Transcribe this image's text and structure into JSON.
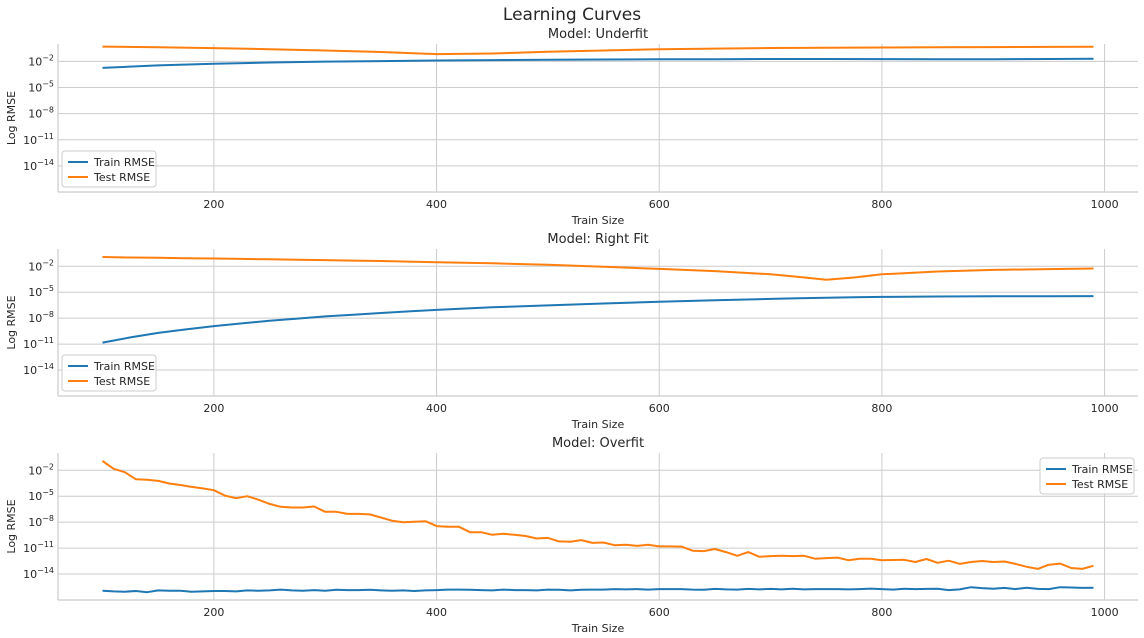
{
  "figure": {
    "title": "Learning Curves"
  },
  "chart_data": [
    {
      "type": "line",
      "title": "Model: Underfit",
      "xlabel": "Train Size",
      "ylabel": "Log RMSE",
      "yscale": "log",
      "xlim": [
        60,
        1030
      ],
      "ylim": [
        1e-17,
        1
      ],
      "xticks": [
        200,
        400,
        600,
        800,
        1000
      ],
      "yticks": [
        0.01,
        1e-05,
        1e-08,
        1e-11,
        1e-14
      ],
      "ytick_labels": [
        {
          "base": "10",
          "exp": "−2"
        },
        {
          "base": "10",
          "exp": "−5"
        },
        {
          "base": "10",
          "exp": "−8"
        },
        {
          "base": "10",
          "exp": "−11"
        },
        {
          "base": "10",
          "exp": "−14"
        }
      ],
      "grid": true,
      "legend": "lower-left",
      "x": [
        100,
        150,
        200,
        250,
        300,
        350,
        400,
        450,
        500,
        550,
        600,
        650,
        700,
        750,
        800,
        850,
        900,
        950,
        990
      ],
      "series": [
        {
          "name": "Train RMSE",
          "color": "#1f77b4",
          "values": [
            0.0018,
            0.0035,
            0.0055,
            0.0075,
            0.0095,
            0.011,
            0.0128,
            0.014,
            0.0155,
            0.0165,
            0.0175,
            0.018,
            0.019,
            0.019,
            0.0185,
            0.018,
            0.018,
            0.019,
            0.02
          ]
        },
        {
          "name": "Test RMSE",
          "color": "#ff7f0e",
          "values": [
            0.5,
            0.43,
            0.34,
            0.25,
            0.18,
            0.12,
            0.07,
            0.08,
            0.13,
            0.18,
            0.25,
            0.3,
            0.35,
            0.38,
            0.4,
            0.42,
            0.44,
            0.46,
            0.48
          ]
        }
      ]
    },
    {
      "type": "line",
      "title": "Model: Right Fit",
      "xlabel": "Train Size",
      "ylabel": "Log RMSE",
      "yscale": "log",
      "xlim": [
        60,
        1030
      ],
      "ylim": [
        1e-17,
        1
      ],
      "xticks": [
        200,
        400,
        600,
        800,
        1000
      ],
      "yticks": [
        0.01,
        1e-05,
        1e-08,
        1e-11,
        1e-14
      ],
      "ytick_labels": [
        {
          "base": "10",
          "exp": "−2"
        },
        {
          "base": "10",
          "exp": "−5"
        },
        {
          "base": "10",
          "exp": "−8"
        },
        {
          "base": "10",
          "exp": "−11"
        },
        {
          "base": "10",
          "exp": "−14"
        }
      ],
      "grid": true,
      "legend": "lower-left",
      "x": [
        100,
        125,
        150,
        175,
        200,
        225,
        250,
        275,
        300,
        325,
        350,
        375,
        400,
        450,
        500,
        550,
        600,
        650,
        700,
        725,
        750,
        775,
        800,
        850,
        900,
        950,
        990
      ],
      "series": [
        {
          "name": "Train RMSE",
          "color": "#1f77b4",
          "values": [
            1.5e-11,
            6e-11,
            2e-10,
            5e-10,
            1.2e-09,
            2.5e-09,
            5e-09,
            9e-09,
            1.6e-08,
            2.5e-08,
            4e-08,
            6e-08,
            9e-08,
            1.8e-07,
            3e-07,
            5e-07,
            8e-07,
            1.2e-06,
            1.7e-06,
            2e-06,
            2.3e-06,
            2.6e-06,
            2.9e-06,
            3.2e-06,
            3.4e-06,
            3.5e-06,
            3.6e-06
          ]
        },
        {
          "name": "Test RMSE",
          "color": "#ff7f0e",
          "values": [
            0.12,
            0.105,
            0.095,
            0.087,
            0.08,
            0.072,
            0.065,
            0.058,
            0.052,
            0.046,
            0.041,
            0.035,
            0.03,
            0.022,
            0.015,
            0.009,
            0.005,
            0.0028,
            0.0012,
            0.0006,
            0.00028,
            0.0005,
            0.0012,
            0.0025,
            0.0038,
            0.0048,
            0.0055
          ]
        }
      ]
    },
    {
      "type": "line",
      "title": "Model: Overfit",
      "xlabel": "Train Size",
      "ylabel": "Log RMSE",
      "yscale": "log",
      "xlim": [
        60,
        1030
      ],
      "ylim": [
        1e-17,
        1
      ],
      "xticks": [
        200,
        400,
        600,
        800,
        1000
      ],
      "yticks": [
        0.01,
        1e-05,
        1e-08,
        1e-11,
        1e-14
      ],
      "ytick_labels": [
        {
          "base": "10",
          "exp": "−2"
        },
        {
          "base": "10",
          "exp": "−5"
        },
        {
          "base": "10",
          "exp": "−8"
        },
        {
          "base": "10",
          "exp": "−11"
        },
        {
          "base": "10",
          "exp": "−14"
        }
      ],
      "grid": true,
      "legend": "upper-right",
      "x": [
        100,
        110,
        120,
        130,
        140,
        150,
        160,
        170,
        180,
        190,
        200,
        210,
        220,
        230,
        240,
        250,
        260,
        270,
        280,
        290,
        300,
        310,
        320,
        330,
        340,
        350,
        360,
        370,
        380,
        390,
        400,
        410,
        420,
        430,
        440,
        450,
        460,
        470,
        480,
        490,
        500,
        510,
        520,
        530,
        540,
        550,
        560,
        570,
        580,
        590,
        600,
        610,
        620,
        630,
        640,
        650,
        660,
        670,
        680,
        690,
        700,
        710,
        720,
        730,
        740,
        750,
        760,
        770,
        780,
        790,
        800,
        810,
        820,
        830,
        840,
        850,
        860,
        870,
        880,
        890,
        900,
        910,
        920,
        930,
        940,
        950,
        960,
        970,
        980,
        990
      ],
      "series": [
        {
          "name": "Train RMSE",
          "color": "#1f77b4",
          "values": [
            1.2e-16,
            1e-16,
            9e-17,
            1.1e-16,
            8e-17,
            1.3e-16,
            1.2e-16,
            1.2e-16,
            9e-17,
            1e-16,
            1.1e-16,
            1.1e-16,
            1e-16,
            1.3e-16,
            1.2e-16,
            1.3e-16,
            1.6e-16,
            1.3e-16,
            1.2e-16,
            1.4e-16,
            1.2e-16,
            1.5e-16,
            1.4e-16,
            1.4e-16,
            1.5e-16,
            1.3e-16,
            1.2e-16,
            1.3e-16,
            1.1e-16,
            1.3e-16,
            1.4e-16,
            1.6e-16,
            1.6e-16,
            1.5e-16,
            1.4e-16,
            1.3e-16,
            1.6e-16,
            1.4e-16,
            1.4e-16,
            1.3e-16,
            1.6e-16,
            1.5e-16,
            1.3e-16,
            1.5e-16,
            1.6e-16,
            1.6e-16,
            1.8e-16,
            1.7e-16,
            1.8e-16,
            1.6e-16,
            1.8e-16,
            1.8e-16,
            1.8e-16,
            1.6e-16,
            1.5e-16,
            1.9e-16,
            1.7e-16,
            1.6e-16,
            1.9e-16,
            1.7e-16,
            1.9e-16,
            1.7e-16,
            2e-16,
            1.7e-16,
            1.8e-16,
            1.8e-16,
            1.8e-16,
            1.7e-16,
            1.8e-16,
            2.1e-16,
            1.8e-16,
            1.6e-16,
            2e-16,
            1.8e-16,
            1.9e-16,
            2e-16,
            1.4e-16,
            1.7e-16,
            3e-16,
            2.4e-16,
            2e-16,
            2.5e-16,
            1.8e-16,
            2.6e-16,
            1.9e-16,
            1.8e-16,
            3e-16,
            2.8e-16,
            2.5e-16,
            2.6e-16
          ]
        },
        {
          "name": "Test RMSE",
          "color": "#ff7f0e",
          "values": [
            0.12,
            0.015,
            0.006,
            0.0009,
            0.0008,
            0.0006,
            0.0003,
            0.0002,
            0.00012,
            8e-05,
            5e-05,
            1.2e-05,
            6e-06,
            1e-05,
            4e-06,
            1.3e-06,
            6e-07,
            5e-07,
            5e-07,
            6.5e-07,
            1.6e-07,
            1.6e-07,
            9e-08,
            9e-08,
            8e-08,
            3.5e-08,
            1.5e-08,
            1e-08,
            1.1e-08,
            1.3e-08,
            3.5e-09,
            3e-09,
            3e-09,
            7e-10,
            7e-10,
            3.5e-10,
            4.5e-10,
            3.5e-10,
            2.5e-10,
            1.3e-10,
            1.5e-10,
            6e-11,
            5.5e-11,
            8.5e-11,
            4e-11,
            4.5e-11,
            2.2e-11,
            2.5e-11,
            1.8e-11,
            2.5e-11,
            1.6e-11,
            1.6e-11,
            1.5e-11,
            5e-12,
            4.5e-12,
            8e-12,
            3.5e-12,
            1.3e-12,
            3.5e-12,
            1e-12,
            1.2e-12,
            1.3e-12,
            1.2e-12,
            1.3e-12,
            6e-13,
            7e-13,
            8e-13,
            4e-13,
            6e-13,
            6e-13,
            4e-13,
            4.2e-13,
            4.5e-13,
            2.5e-13,
            5.5e-13,
            2e-13,
            3.5e-13,
            1.5e-13,
            2.5e-13,
            3.2e-13,
            2.5e-13,
            2.8e-13,
            1.5e-13,
            7e-14,
            4e-14,
            1.2e-13,
            1.6e-13,
            5e-14,
            4e-14,
            9e-14
          ]
        }
      ]
    }
  ]
}
